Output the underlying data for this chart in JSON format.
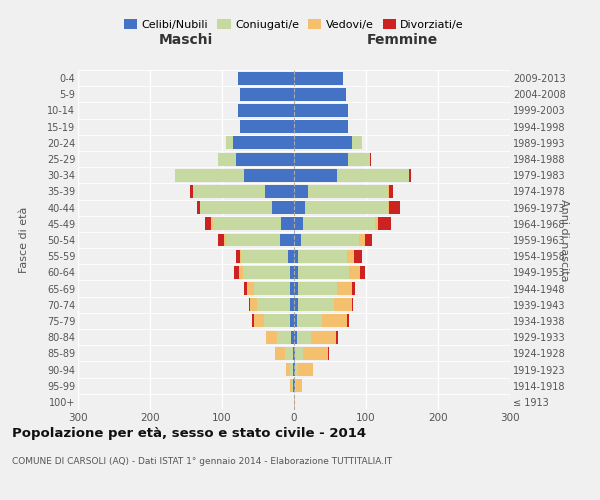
{
  "age_groups": [
    "100+",
    "95-99",
    "90-94",
    "85-89",
    "80-84",
    "75-79",
    "70-74",
    "65-69",
    "60-64",
    "55-59",
    "50-54",
    "45-49",
    "40-44",
    "35-39",
    "30-34",
    "25-29",
    "20-24",
    "15-19",
    "10-14",
    "5-9",
    "0-4"
  ],
  "birth_years": [
    "≤ 1913",
    "1914-1918",
    "1919-1923",
    "1924-1928",
    "1929-1933",
    "1934-1938",
    "1939-1943",
    "1944-1948",
    "1949-1953",
    "1954-1958",
    "1959-1963",
    "1964-1968",
    "1969-1973",
    "1974-1978",
    "1979-1983",
    "1984-1988",
    "1989-1993",
    "1994-1998",
    "1999-2003",
    "2004-2008",
    "2009-2013"
  ],
  "colors": {
    "celibi": "#4472c4",
    "coniugati": "#c5d9a0",
    "vedovi": "#f5c06e",
    "divorziati": "#cc2222"
  },
  "maschi": {
    "celibi": [
      0,
      1,
      1,
      2,
      4,
      6,
      6,
      5,
      6,
      8,
      20,
      18,
      30,
      40,
      70,
      80,
      85,
      75,
      78,
      75,
      78
    ],
    "coniugati": [
      0,
      2,
      5,
      10,
      20,
      35,
      45,
      50,
      65,
      65,
      75,
      95,
      100,
      100,
      95,
      25,
      10,
      0,
      0,
      0,
      0
    ],
    "vedovi": [
      0,
      2,
      5,
      15,
      15,
      15,
      10,
      10,
      5,
      2,
      2,
      2,
      0,
      0,
      0,
      0,
      0,
      0,
      0,
      0,
      0
    ],
    "divorziati": [
      0,
      0,
      0,
      0,
      0,
      2,
      2,
      5,
      8,
      5,
      8,
      8,
      5,
      5,
      0,
      0,
      0,
      0,
      0,
      0,
      0
    ]
  },
  "femmine": {
    "celibi": [
      0,
      1,
      1,
      2,
      4,
      4,
      5,
      5,
      6,
      6,
      10,
      12,
      15,
      20,
      60,
      75,
      80,
      75,
      75,
      72,
      68
    ],
    "coniugati": [
      0,
      2,
      5,
      10,
      20,
      35,
      50,
      55,
      70,
      68,
      80,
      100,
      115,
      110,
      100,
      30,
      15,
      0,
      0,
      0,
      0
    ],
    "vedovi": [
      2,
      8,
      20,
      35,
      35,
      35,
      25,
      20,
      15,
      10,
      8,
      5,
      2,
      2,
      0,
      0,
      0,
      0,
      0,
      0,
      0
    ],
    "divorziati": [
      0,
      0,
      0,
      2,
      2,
      2,
      2,
      5,
      8,
      10,
      10,
      18,
      15,
      5,
      2,
      2,
      0,
      0,
      0,
      0,
      0
    ]
  },
  "title": "Popolazione per età, sesso e stato civile - 2014",
  "subtitle": "COMUNE DI CARSOLI (AQ) - Dati ISTAT 1° gennaio 2014 - Elaborazione TUTTITALIA.IT",
  "xlabel_left": "Maschi",
  "xlabel_right": "Femmine",
  "ylabel_left": "Fasce di età",
  "ylabel_right": "Anni di nascita",
  "xlim": 300,
  "legend_labels": [
    "Celibi/Nubili",
    "Coniugati/e",
    "Vedovi/e",
    "Divorziati/e"
  ],
  "bg_color": "#f0f0f0",
  "bar_height": 0.8
}
